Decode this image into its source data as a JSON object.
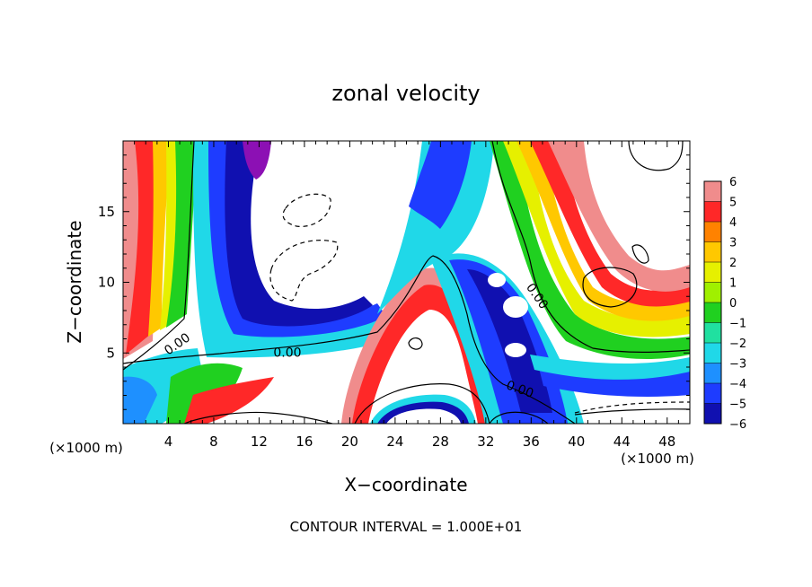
{
  "chart_data": {
    "type": "heatmap",
    "title": "zonal velocity",
    "xlabel": "X−coordinate",
    "ylabel": "Z−coordinate",
    "x_unit": "(×1000 m)",
    "y_unit": "(×1000 m)",
    "footer": "CONTOUR INTERVAL = 1.000E+01",
    "xlim": [
      0,
      50
    ],
    "ylim": [
      0,
      20
    ],
    "x_ticks": [
      4,
      8,
      12,
      16,
      20,
      24,
      28,
      32,
      36,
      40,
      44,
      48
    ],
    "y_ticks": [
      5,
      10,
      15
    ],
    "colorbar": {
      "levels": [
        6,
        5,
        4,
        3,
        2,
        1,
        0,
        -1,
        -2,
        -3,
        -4,
        -5,
        -6
      ],
      "colors": [
        "#f08c8c",
        "#ff2828",
        "#ff8200",
        "#ffc800",
        "#e6f000",
        "#a0f000",
        "#20d020",
        "#20e0a0",
        "#20d8e8",
        "#1e90ff",
        "#1e3cff",
        "#1010b0",
        "#8c10b4"
      ]
    },
    "contour_labels": [
      {
        "text": "0.00",
        "x": 4.8,
        "z": 5.6,
        "rotation": -35
      },
      {
        "text": "0.00",
        "x": 14.5,
        "z": 5.0,
        "rotation": 0
      },
      {
        "text": "0.00",
        "x": 36.5,
        "z": 9.0,
        "rotation": 55
      },
      {
        "text": "0.00",
        "x": 35.0,
        "z": 2.4,
        "rotation": 20
      }
    ]
  }
}
